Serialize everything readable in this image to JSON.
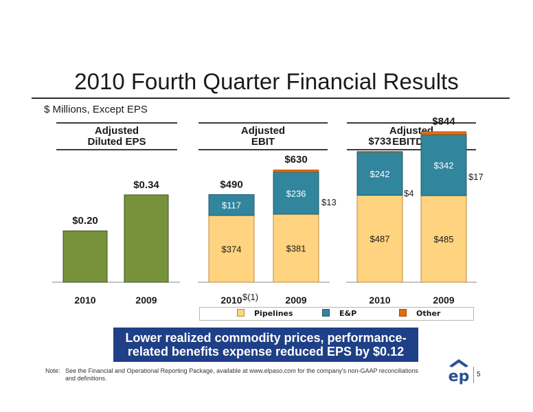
{
  "slide": {
    "title": "2010 Fourth Quarter Financial Results",
    "units": "$ Millions, Except EPS",
    "callout_line1": "Lower realized commodity prices, performance-",
    "callout_line2": "related benefits expense reduced EPS by $0.12",
    "note_label": "Note:",
    "note_text": "See the Financial and Operational Reporting Package, available at www.elpaso.com for the company's non-GAAP reconciliations and definitions.",
    "page_number": "5"
  },
  "colors": {
    "pipelines": "#FFD37F",
    "ep": "#31859C",
    "other": "#E46C0A",
    "eps_bar": "#76933C",
    "callout_bg": "#1F3F86",
    "logo_blue": "#2A4F96"
  },
  "legend": [
    "Pipelines",
    "E&P",
    "Other"
  ],
  "chart_data": [
    {
      "type": "bar",
      "title_line1": "Adjusted",
      "title_line2": "Diluted EPS",
      "categories": [
        "2010",
        "2009"
      ],
      "values": [
        0.2,
        0.34
      ],
      "value_labels": [
        "$0.20",
        "$0.34"
      ],
      "ylim": [
        0,
        0.5
      ]
    },
    {
      "type": "bar",
      "stacked": true,
      "title_line1": "Adjusted",
      "title_line2": "EBIT",
      "categories": [
        "2010",
        "2009"
      ],
      "series": [
        {
          "name": "Pipelines",
          "values": [
            374,
            381
          ],
          "labels": [
            "$374",
            "$381"
          ]
        },
        {
          "name": "E&P",
          "values": [
            117,
            236
          ],
          "labels": [
            "$117",
            "$236"
          ]
        },
        {
          "name": "Other",
          "values": [
            -1,
            13
          ],
          "labels": [
            "$(1)",
            "$13"
          ]
        }
      ],
      "totals": [
        490,
        630
      ],
      "total_labels": [
        "$490",
        "$630"
      ],
      "ylim": [
        0,
        1000
      ]
    },
    {
      "type": "bar",
      "stacked": true,
      "title_line1": "Adjusted",
      "title_line2": "EBITDA",
      "categories": [
        "2010",
        "2009"
      ],
      "series": [
        {
          "name": "Pipelines",
          "values": [
            487,
            485
          ],
          "labels": [
            "$487",
            "$485"
          ]
        },
        {
          "name": "E&P",
          "values": [
            242,
            342
          ],
          "labels": [
            "$242",
            "$342"
          ]
        },
        {
          "name": "Other",
          "values": [
            4,
            17
          ],
          "labels": [
            "$4",
            "$17"
          ]
        }
      ],
      "totals": [
        733,
        844
      ],
      "total_labels": [
        "$733",
        "$844"
      ],
      "ylim": [
        0,
        1000
      ]
    }
  ]
}
